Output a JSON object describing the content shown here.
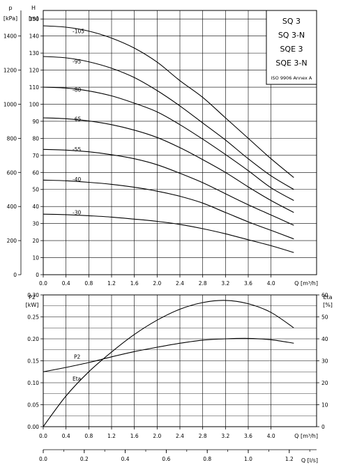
{
  "chart_data": [
    {
      "type": "line",
      "title": "",
      "legend_box": {
        "models": [
          "SQ 3",
          "SQ 3-N",
          "SQE 3",
          "SQE 3-N"
        ],
        "standard": "ISO 9906 Annex A"
      },
      "y_left": {
        "label_line1": "p",
        "label_line2": "[kPa]",
        "range": [
          0,
          1550
        ],
        "ticks": [
          0,
          200,
          400,
          600,
          800,
          1000,
          1200,
          1400
        ]
      },
      "y_right": {
        "label_line1": "H",
        "label_line2": "[m]",
        "range": [
          0,
          155
        ],
        "ticks": [
          0,
          10,
          20,
          30,
          40,
          50,
          60,
          70,
          80,
          90,
          100,
          110,
          120,
          130,
          140,
          150
        ]
      },
      "x": {
        "label": "Q [m³/h]",
        "range": [
          0,
          4.8
        ],
        "ticks": [
          0,
          0.4,
          0.8,
          1.2,
          1.6,
          2.0,
          2.4,
          2.8,
          3.2,
          3.6,
          4.0
        ],
        "tick_labels": [
          "0.0",
          "0.4",
          "0.8",
          "1.2",
          "1.6",
          "2.0",
          "2.4",
          "2.8",
          "3.2",
          "3.6",
          "4.0"
        ]
      },
      "grid": true,
      "series": [
        {
          "name": "-105",
          "x": [
            0,
            0.4,
            0.8,
            1.2,
            1.6,
            2.0,
            2.4,
            2.8,
            3.2,
            3.6,
            4.0,
            4.4
          ],
          "y": [
            146,
            145.2,
            142.9,
            138.8,
            132.9,
            124.7,
            113.8,
            104.0,
            92.0,
            80.0,
            68.0,
            57.0
          ]
        },
        {
          "name": "-95",
          "x": [
            0,
            0.4,
            0.8,
            1.2,
            1.6,
            2.0,
            2.4,
            2.8,
            3.2,
            3.6,
            4.0,
            4.4
          ],
          "y": [
            128,
            127.2,
            124.9,
            121.1,
            115.6,
            108.0,
            99.0,
            89.0,
            79.0,
            68.0,
            58.0,
            50.0
          ]
        },
        {
          "name": "-80",
          "x": [
            0,
            0.4,
            0.8,
            1.2,
            1.6,
            2.0,
            2.4,
            2.8,
            3.2,
            3.6,
            4.0,
            4.4
          ],
          "y": [
            110,
            109.5,
            107.8,
            104.9,
            100.6,
            95.5,
            88.0,
            79.5,
            70.5,
            61.0,
            51.0,
            43.5
          ]
        },
        {
          "name": "-65",
          "x": [
            0,
            0.4,
            0.8,
            1.2,
            1.6,
            2.0,
            2.4,
            2.8,
            3.2,
            3.6,
            4.0,
            4.4
          ],
          "y": [
            92,
            91.5,
            90.2,
            88.0,
            84.8,
            80.5,
            74.5,
            67.5,
            60.0,
            51.5,
            43.5,
            36.5
          ]
        },
        {
          "name": "-55",
          "x": [
            0,
            0.4,
            0.8,
            1.2,
            1.6,
            2.0,
            2.4,
            2.8,
            3.2,
            3.6,
            4.0,
            4.4
          ],
          "y": [
            73.5,
            73.1,
            72.1,
            70.4,
            68.0,
            64.5,
            59.5,
            54.0,
            47.5,
            41.0,
            35.0,
            29.0
          ]
        },
        {
          "name": "-40",
          "x": [
            0,
            0.4,
            0.8,
            1.2,
            1.6,
            2.0,
            2.4,
            2.8,
            3.2,
            3.6,
            4.0,
            4.4
          ],
          "y": [
            55.5,
            55.1,
            54.2,
            53.0,
            51.3,
            49.0,
            46.0,
            42.0,
            36.5,
            31.0,
            26.0,
            21.0
          ]
        },
        {
          "name": "-30",
          "x": [
            0,
            0.4,
            0.8,
            1.2,
            1.6,
            2.0,
            2.4,
            2.8,
            3.2,
            3.6,
            4.0,
            4.4
          ],
          "y": [
            35.5,
            35.2,
            34.6,
            33.8,
            32.6,
            31.3,
            29.5,
            27.0,
            24.0,
            20.5,
            17.0,
            13.0
          ]
        }
      ]
    },
    {
      "type": "line",
      "title": "",
      "y_left": {
        "label_line1": "P2",
        "label_line2": "[kW]",
        "range": [
          0,
          0.3
        ],
        "ticks": [
          0,
          0.05,
          0.1,
          0.15,
          0.2,
          0.25,
          0.3
        ],
        "tick_labels": [
          "0.00",
          "0.05",
          "0.10",
          "0.15",
          "0.20",
          "0.25",
          "0.30"
        ]
      },
      "y_right": {
        "label_line1": "Eta",
        "label_line2": "[%]",
        "range": [
          0,
          60
        ],
        "ticks": [
          0,
          10,
          20,
          30,
          40,
          50,
          60
        ]
      },
      "x": {
        "label": "Q [m³/h]",
        "range": [
          0,
          4.8
        ],
        "ticks": [
          0,
          0.4,
          0.8,
          1.2,
          1.6,
          2.0,
          2.4,
          2.8,
          3.2,
          3.6,
          4.0
        ],
        "tick_labels": [
          "0.0",
          "0.4",
          "0.8",
          "1.2",
          "1.6",
          "2.0",
          "2.4",
          "2.8",
          "3.2",
          "3.6",
          "4.0"
        ]
      },
      "x_secondary": {
        "label": "Q [l/s]",
        "range": [
          0,
          1.3333
        ],
        "ticks": [
          0,
          0.2,
          0.4,
          0.6,
          0.8,
          1.0,
          1.2
        ],
        "tick_labels": [
          "0.0",
          "0.2",
          "0.4",
          "0.6",
          "0.8",
          "1.0",
          "1.2"
        ]
      },
      "grid": true,
      "series": [
        {
          "name": "P2",
          "axis": "left",
          "x": [
            0,
            0.4,
            0.8,
            1.2,
            1.6,
            2.0,
            2.4,
            2.8,
            3.2,
            3.6,
            4.0,
            4.4
          ],
          "y": [
            0.125,
            0.135,
            0.146,
            0.159,
            0.171,
            0.181,
            0.19,
            0.197,
            0.2,
            0.201,
            0.198,
            0.19
          ]
        },
        {
          "name": "Eta",
          "axis": "right",
          "x": [
            0,
            0.4,
            0.8,
            1.2,
            1.6,
            2.0,
            2.4,
            2.8,
            3.2,
            3.6,
            4.0,
            4.4
          ],
          "y": [
            0,
            14,
            25,
            34,
            42,
            48.5,
            53.5,
            56.5,
            57.5,
            56.0,
            52.0,
            45.0
          ]
        }
      ]
    }
  ]
}
